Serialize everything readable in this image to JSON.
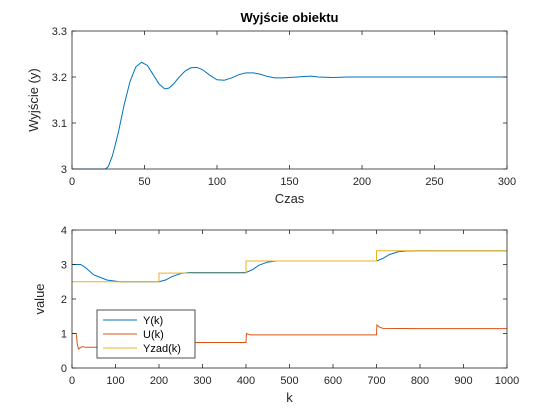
{
  "chart_data": [
    {
      "type": "line",
      "title": "Wyjście obiektu",
      "xlabel": "Czas",
      "ylabel": "Wyjście (y)",
      "xlim": [
        0,
        300
      ],
      "ylim": [
        3,
        3.3
      ],
      "xticks": [
        "0",
        "50",
        "100",
        "150",
        "200",
        "250",
        "300"
      ],
      "yticks": [
        "3",
        "3.1",
        "3.2",
        "3.3"
      ],
      "grid": false,
      "series": [
        {
          "color": "#0072BD",
          "x": [
            0,
            23,
            25,
            28,
            32,
            36,
            40,
            44,
            48,
            52,
            56,
            60,
            64,
            67,
            70,
            74,
            78,
            82,
            86,
            90,
            95,
            100,
            105,
            110,
            115,
            120,
            125,
            130,
            135,
            140,
            145,
            150,
            160,
            165,
            170,
            180,
            190,
            200,
            250,
            300
          ],
          "y": [
            3.0,
            3.0,
            3.005,
            3.03,
            3.08,
            3.14,
            3.19,
            3.222,
            3.232,
            3.225,
            3.205,
            3.185,
            3.174,
            3.176,
            3.185,
            3.2,
            3.213,
            3.22,
            3.221,
            3.216,
            3.204,
            3.194,
            3.193,
            3.198,
            3.205,
            3.209,
            3.209,
            3.206,
            3.201,
            3.198,
            3.198,
            3.199,
            3.201,
            3.202,
            3.2,
            3.199,
            3.2,
            3.2,
            3.2,
            3.2
          ]
        }
      ]
    },
    {
      "type": "line",
      "title": "",
      "xlabel": "k",
      "ylabel": "value",
      "xlim": [
        0,
        1000
      ],
      "ylim": [
        0,
        4
      ],
      "xticks": [
        "0",
        "100",
        "200",
        "300",
        "400",
        "500",
        "600",
        "700",
        "800",
        "900",
        "1000"
      ],
      "yticks": [
        "0",
        "1",
        "2",
        "3",
        "4"
      ],
      "grid": false,
      "legend_position": "bottom-left",
      "series": [
        {
          "name": "Y(k)",
          "color": "#0072BD",
          "x": [
            0,
            20,
            30,
            50,
            80,
            110,
            150,
            200,
            215,
            230,
            250,
            270,
            300,
            400,
            415,
            430,
            450,
            470,
            500,
            700,
            715,
            730,
            750,
            770,
            800,
            1000
          ],
          "y": [
            3.0,
            3.0,
            2.92,
            2.7,
            2.55,
            2.5,
            2.5,
            2.5,
            2.55,
            2.65,
            2.74,
            2.77,
            2.77,
            2.77,
            2.85,
            2.98,
            3.07,
            3.1,
            3.1,
            3.1,
            3.18,
            3.29,
            3.37,
            3.39,
            3.4,
            3.4
          ]
        },
        {
          "name": "U(k)",
          "color": "#D95319",
          "x": [
            0,
            10,
            12,
            15,
            20,
            25,
            30,
            40,
            50,
            200,
            201,
            205,
            210,
            215,
            300,
            400,
            401,
            405,
            410,
            415,
            500,
            700,
            701,
            705,
            710,
            715,
            800,
            1000
          ],
          "y": [
            1.0,
            1.0,
            0.7,
            0.55,
            0.6,
            0.62,
            0.6,
            0.6,
            0.6,
            0.6,
            0.8,
            0.75,
            0.73,
            0.74,
            0.74,
            0.74,
            1.0,
            0.98,
            0.96,
            0.96,
            0.96,
            0.96,
            1.25,
            1.2,
            1.17,
            1.15,
            1.14,
            1.14
          ]
        },
        {
          "name": "Yzad(k)",
          "color": "#EDB120",
          "x": [
            0,
            200,
            200,
            400,
            400,
            700,
            700,
            1000
          ],
          "y": [
            2.5,
            2.5,
            2.75,
            2.75,
            3.1,
            3.1,
            3.4,
            3.4
          ]
        }
      ]
    }
  ]
}
